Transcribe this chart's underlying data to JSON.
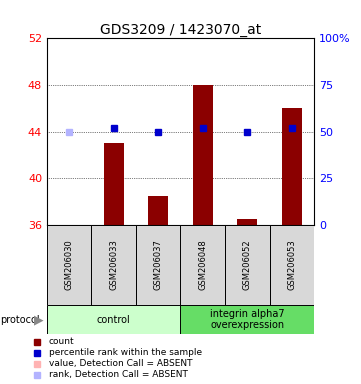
{
  "title": "GDS3209 / 1423070_at",
  "samples": [
    "GSM206030",
    "GSM206033",
    "GSM206037",
    "GSM206048",
    "GSM206052",
    "GSM206053"
  ],
  "bar_values": [
    36.0,
    43.0,
    38.5,
    48.0,
    36.5,
    46.0
  ],
  "bar_colors": [
    "#ffb3b3",
    "#8b0000",
    "#8b0000",
    "#8b0000",
    "#8b0000",
    "#8b0000"
  ],
  "rank_values": [
    50,
    52,
    50,
    52,
    50,
    52
  ],
  "rank_colors": [
    "#b3b3ff",
    "#0000cd",
    "#0000cd",
    "#0000cd",
    "#0000cd",
    "#0000cd"
  ],
  "ylim_left": [
    36,
    52
  ],
  "ylim_right": [
    0,
    100
  ],
  "yticks_left": [
    36,
    40,
    44,
    48,
    52
  ],
  "yticks_right": [
    0,
    25,
    50,
    75,
    100
  ],
  "ytick_labels_right": [
    "0",
    "25",
    "50",
    "75",
    "100%"
  ],
  "groups": [
    {
      "label": "control",
      "start": 0,
      "end": 3,
      "color": "#ccffcc"
    },
    {
      "label": "integrin alpha7\noverexpression",
      "start": 3,
      "end": 6,
      "color": "#66dd66"
    }
  ],
  "bar_base": 36,
  "bg_color": "#d8d8d8",
  "title_fontsize": 10,
  "legend_items": [
    {
      "color": "#8b0000",
      "label": "count"
    },
    {
      "color": "#0000cd",
      "label": "percentile rank within the sample"
    },
    {
      "color": "#ffb3b3",
      "label": "value, Detection Call = ABSENT"
    },
    {
      "color": "#b3b3ff",
      "label": "rank, Detection Call = ABSENT"
    }
  ],
  "protocol_label": "protocol"
}
